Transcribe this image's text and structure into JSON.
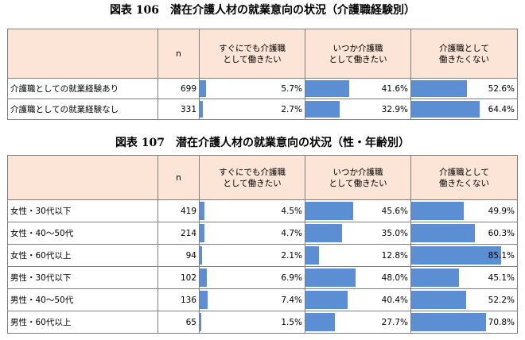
{
  "table1": {
    "title": "図表 106　潜在介護人材の就業意向の状況（介護職経験別）",
    "headers": [
      "",
      "n",
      "すぐにでも介護職\nとして働きたい",
      "いつか介護職\nとして働きたい",
      "介護職として\n働きたくない"
    ],
    "rows": [
      {
        "label": "介護職としての就業経験あり",
        "n": "699",
        "values": [
          5.7,
          41.6,
          52.6
        ],
        "texts": [
          "5.7%",
          "41.6%",
          "52.6%"
        ]
      },
      {
        "label": "介護職としての就業経験なし",
        "n": "331",
        "values": [
          2.7,
          32.9,
          64.4
        ],
        "texts": [
          "2.7%",
          "32.9%",
          "64.4%"
        ]
      }
    ]
  },
  "table2": {
    "title": "図表 107　潜在介護人材の就業意向の状況（性・年齢別）",
    "headers": [
      "",
      "n",
      "すぐにでも介護職\nとして働きたい",
      "いつか介護職\nとして働きたい",
      "介護職として\n働きたくない"
    ],
    "rows": [
      {
        "label": "女性・30代以下",
        "n": "419",
        "values": [
          4.5,
          45.6,
          49.9
        ],
        "texts": [
          "4.5%",
          "45.6%",
          "49.9%"
        ]
      },
      {
        "label": "女性・40～50代",
        "n": "214",
        "values": [
          4.7,
          35.0,
          60.3
        ],
        "texts": [
          "4.7%",
          "35.0%",
          "60.3%"
        ]
      },
      {
        "label": "女性・60代以上",
        "n": "94",
        "values": [
          2.1,
          12.8,
          85.1
        ],
        "texts": [
          "2.1%",
          "12.8%",
          "85.1%"
        ]
      },
      {
        "label": "男性・30代以下",
        "n": "102",
        "values": [
          6.9,
          48.0,
          45.1
        ],
        "texts": [
          "6.9%",
          "48.0%",
          "45.1%"
        ]
      },
      {
        "label": "男性・40～50代",
        "n": "136",
        "values": [
          7.4,
          40.4,
          52.2
        ],
        "texts": [
          "7.4%",
          "40.4%",
          "52.2%"
        ]
      },
      {
        "label": "男性・60代以上",
        "n": "65",
        "values": [
          1.5,
          27.7,
          70.8
        ],
        "texts": [
          "1.5%",
          "27.7%",
          "70.8%"
        ]
      }
    ]
  },
  "colors": {
    "bar": "#5b8ed2",
    "header_bg": "#fce4d6",
    "border": "#7f7f7f"
  }
}
